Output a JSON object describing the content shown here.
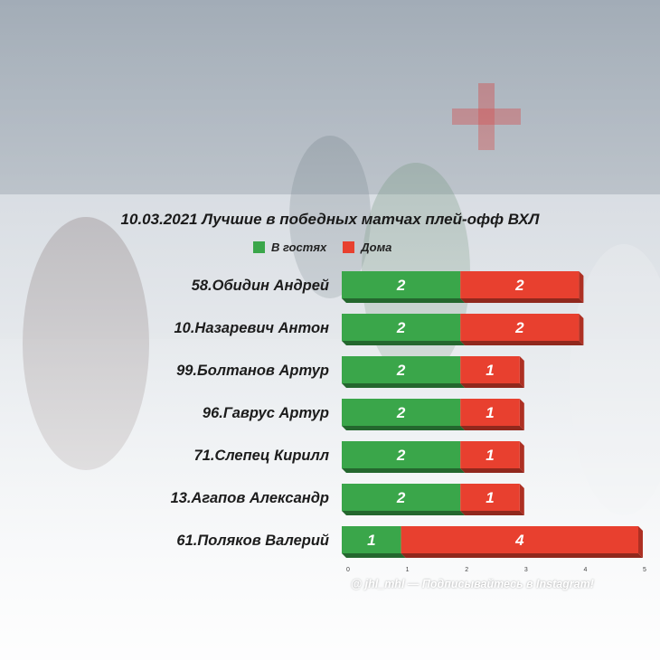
{
  "chart_data": {
    "type": "bar",
    "orientation": "horizontal",
    "stacked": true,
    "title": "10.03.2021 Лучшие в победных матчах плей-офф ВХЛ",
    "categories": [
      "58.Обидин Андрей",
      "10.Назаревич Антон",
      "99.Болтанов Артур",
      "96.Гаврус Артур",
      "71.Слепец Кирилл",
      "13.Агапов Александр",
      "61.Поляков Валерий"
    ],
    "series": [
      {
        "name": "В гостях",
        "color": "#3aa64a",
        "values": [
          2,
          2,
          2,
          2,
          2,
          2,
          1
        ]
      },
      {
        "name": "Дома",
        "color": "#e8402f",
        "values": [
          2,
          2,
          1,
          1,
          1,
          1,
          4
        ]
      }
    ],
    "xlim": [
      0,
      5
    ],
    "xticks": [
      "0",
      "1",
      "2",
      "3",
      "4",
      "5"
    ],
    "legend_position": "top",
    "grid": false
  },
  "footer": "@ jhl_mhl — Подписывайтесь в Instagram!"
}
